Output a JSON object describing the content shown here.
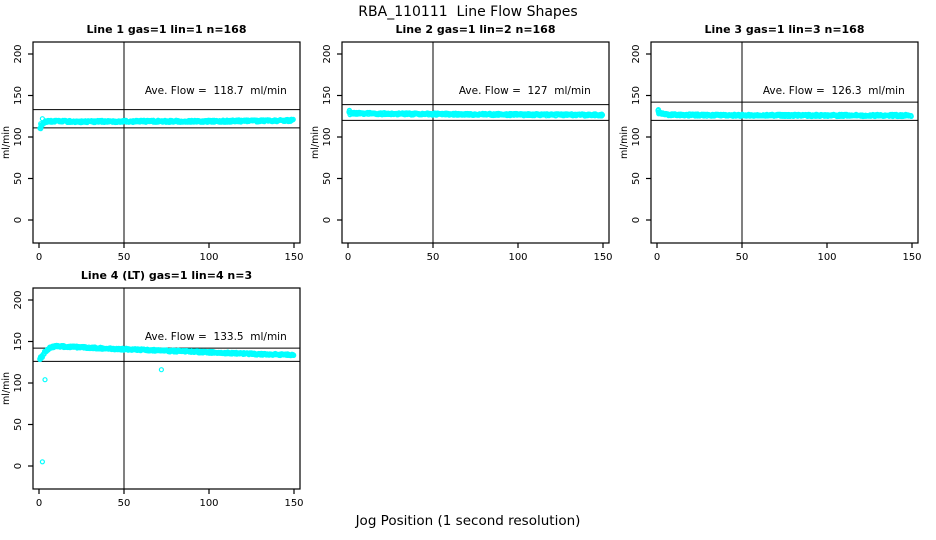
{
  "figure_title": "RBA_110111  Line Flow Shapes",
  "x_caption": "Jog Position (1 second resolution)",
  "colors": {
    "points": "#00FFFF",
    "axis": "#000000",
    "background": "#FFFFFF"
  },
  "chart_data": [
    {
      "type": "scatter",
      "title": "Line 1 gas=1 lin=1 n=168",
      "annotation": "Ave. Flow =  118.7  ml/min",
      "ave_flow": 118.7,
      "ylabel": "ml/min",
      "xlabel": "",
      "xlim": [
        0,
        150
      ],
      "ylim": [
        0,
        200
      ],
      "xticks": [
        0,
        50,
        100,
        150
      ],
      "yticks": [
        0,
        50,
        100,
        150,
        200
      ],
      "vline_x": 50,
      "hlines": [
        133,
        111
      ],
      "band": {
        "x_start": 0.8,
        "x_end": 150,
        "half_width": 1.3,
        "centerline": [
          [
            0.8,
            110
          ],
          [
            1.5,
            114
          ],
          [
            2.5,
            117
          ],
          [
            4,
            118.5
          ],
          [
            8,
            119
          ],
          [
            25,
            118.5
          ],
          [
            60,
            119
          ],
          [
            100,
            119
          ],
          [
            130,
            119.5
          ],
          [
            150,
            120
          ]
        ]
      },
      "extra_points": [
        [
          1,
          110
        ],
        [
          1.5,
          113
        ],
        [
          2,
          122
        ],
        [
          1,
          116
        ]
      ],
      "outliers": []
    },
    {
      "type": "scatter",
      "title": "Line 2 gas=1 lin=2 n=168",
      "annotation": "Ave. Flow =  127  ml/min",
      "ave_flow": 127,
      "ylabel": "ml/min",
      "xlabel": "",
      "xlim": [
        0,
        150
      ],
      "ylim": [
        0,
        200
      ],
      "xticks": [
        0,
        50,
        100,
        150
      ],
      "yticks": [
        0,
        50,
        100,
        150,
        200
      ],
      "vline_x": 50,
      "hlines": [
        139,
        120
      ],
      "band": {
        "x_start": 0.8,
        "x_end": 150,
        "half_width": 1.3,
        "centerline": [
          [
            0.8,
            130
          ],
          [
            2,
            129
          ],
          [
            6,
            128.5
          ],
          [
            20,
            128
          ],
          [
            60,
            127.5
          ],
          [
            100,
            127
          ],
          [
            150,
            126.5
          ]
        ]
      },
      "extra_points": [
        [
          0.8,
          132
        ],
        [
          1.2,
          127
        ]
      ],
      "outliers": []
    },
    {
      "type": "scatter",
      "title": "Line 3 gas=1 lin=3 n=168",
      "annotation": "Ave. Flow =  126.3  ml/min",
      "ave_flow": 126.3,
      "ylabel": "ml/min",
      "xlabel": "",
      "xlim": [
        0,
        150
      ],
      "ylim": [
        0,
        200
      ],
      "xticks": [
        0,
        50,
        100,
        150
      ],
      "yticks": [
        0,
        50,
        100,
        150,
        200
      ],
      "vline_x": 50,
      "hlines": [
        142,
        120
      ],
      "band": {
        "x_start": 0.8,
        "x_end": 150,
        "half_width": 1.3,
        "centerline": [
          [
            0.8,
            131
          ],
          [
            1.5,
            129.5
          ],
          [
            3,
            128
          ],
          [
            6,
            127
          ],
          [
            15,
            126.5
          ],
          [
            50,
            126.2
          ],
          [
            100,
            126
          ],
          [
            150,
            126
          ]
        ]
      },
      "extra_points": [
        [
          0.8,
          133
        ],
        [
          1,
          128
        ]
      ],
      "outliers": []
    },
    {
      "type": "scatter",
      "title": "Line 4 (LT) gas=1 lin=4 n=3",
      "annotation": "Ave. Flow =  133.5  ml/min",
      "ave_flow": 133.5,
      "ylabel": "ml/min",
      "xlabel": "",
      "xlim": [
        0,
        150
      ],
      "ylim": [
        0,
        200
      ],
      "xticks": [
        0,
        50,
        100,
        150
      ],
      "yticks": [
        0,
        50,
        100,
        150,
        200
      ],
      "vline_x": 50,
      "hlines": [
        142,
        126
      ],
      "band": {
        "x_start": 0.5,
        "x_end": 150,
        "half_width": 1.2,
        "centerline": [
          [
            0.5,
            128
          ],
          [
            1.5,
            132
          ],
          [
            3,
            136
          ],
          [
            5,
            140
          ],
          [
            7,
            143
          ],
          [
            10,
            144.5
          ],
          [
            15,
            144
          ],
          [
            25,
            143
          ],
          [
            40,
            141.5
          ],
          [
            60,
            140
          ],
          [
            80,
            138.5
          ],
          [
            100,
            137
          ],
          [
            120,
            135.5
          ],
          [
            135,
            134.5
          ],
          [
            150,
            134
          ]
        ]
      },
      "extra_points": [
        [
          1,
          129
        ],
        [
          2,
          131
        ]
      ],
      "outliers": [
        [
          2,
          5
        ],
        [
          3.5,
          104
        ],
        [
          72,
          116
        ]
      ]
    }
  ]
}
